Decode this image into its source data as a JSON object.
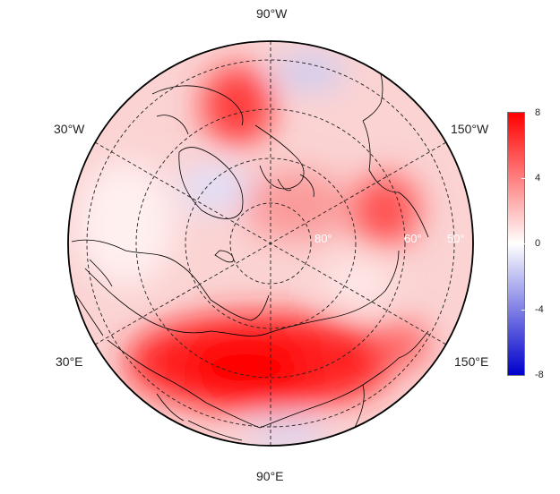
{
  "map": {
    "projection": "north-polar-stereographic",
    "longitude_labels": {
      "top": "90°W",
      "bottom": "90°E",
      "upper_left": "30°W",
      "upper_right": "150°W",
      "lower_left": "30°E",
      "lower_right": "150°E"
    },
    "latitude_labels": [
      "80°",
      "60°",
      "50°"
    ]
  },
  "colorbar": {
    "colors": [
      "#0000cc",
      "#ffffff",
      "#ff0000"
    ],
    "ticks": [
      "8",
      "4",
      "0",
      "-4",
      "-8"
    ],
    "range": [
      -8,
      8
    ]
  }
}
